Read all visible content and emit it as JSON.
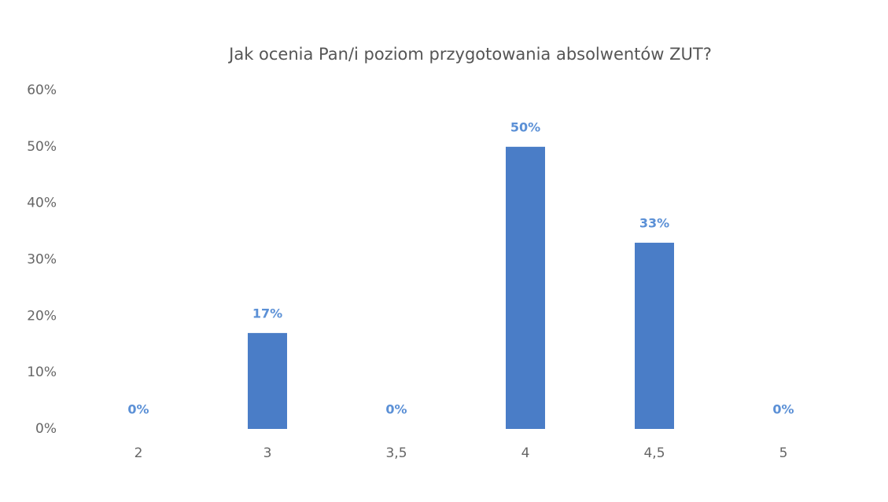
{
  "chart_data": {
    "type": "bar",
    "title": "Jak ocenia Pan/i poziom przygotowania absolwentów ZUT?",
    "categories": [
      "2",
      "3",
      "3,5",
      "4",
      "4,5",
      "5"
    ],
    "values": [
      0,
      17,
      0,
      50,
      33,
      0
    ],
    "value_labels": [
      "0%",
      "17%",
      "0%",
      "50%",
      "33%",
      "0%"
    ],
    "color": "#4a7dc7",
    "ylim": [
      0,
      60
    ],
    "yticks": [
      {
        "value": 0,
        "label": "0%"
      },
      {
        "value": 10,
        "label": "10%"
      },
      {
        "value": 20,
        "label": "20%"
      },
      {
        "value": 30,
        "label": "30%"
      },
      {
        "value": 40,
        "label": "40%"
      },
      {
        "value": 50,
        "label": "50%"
      },
      {
        "value": 60,
        "label": "60%"
      }
    ],
    "grid": false
  }
}
